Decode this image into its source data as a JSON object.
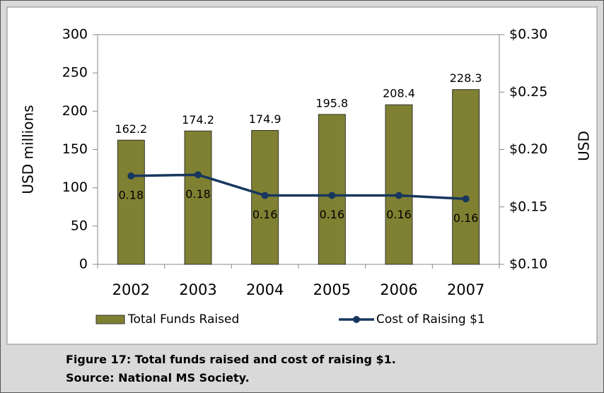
{
  "chart_data": {
    "type": "bar-line",
    "categories": [
      "2002",
      "2003",
      "2004",
      "2005",
      "2006",
      "2007"
    ],
    "series": [
      {
        "name": "Total Funds Raised",
        "type": "bar",
        "color": "#808033",
        "values": [
          162.2,
          174.2,
          174.9,
          195.8,
          208.4,
          228.3
        ]
      },
      {
        "name": "Cost of Raising $1",
        "type": "line",
        "axis": "y2",
        "color": "#17375e",
        "values": [
          0.177,
          0.178,
          0.16,
          0.16,
          0.16,
          0.157
        ],
        "value_labels": [
          "0.18",
          "0.18",
          "0.16",
          "0.16",
          "0.16",
          "0.16"
        ]
      }
    ],
    "ylabel": "USD millions",
    "y2label": "USD",
    "ylim": [
      0,
      300
    ],
    "yticks": [
      0,
      50,
      100,
      150,
      200,
      250,
      300
    ],
    "y2lim": [
      0.1,
      0.3
    ],
    "y2ticks": [
      {
        "value": 0.1,
        "label": "$0.10"
      },
      {
        "value": 0.15,
        "label": "$0.15"
      },
      {
        "value": 0.2,
        "label": "$0.20"
      },
      {
        "value": 0.25,
        "label": "$0.25"
      },
      {
        "value": 0.3,
        "label": "$0.30"
      }
    ],
    "grid": false,
    "legend": "bottom"
  },
  "caption": [
    "Figure 17: Total funds raised and cost of raising $1.",
    "Source:  National MS Society."
  ]
}
